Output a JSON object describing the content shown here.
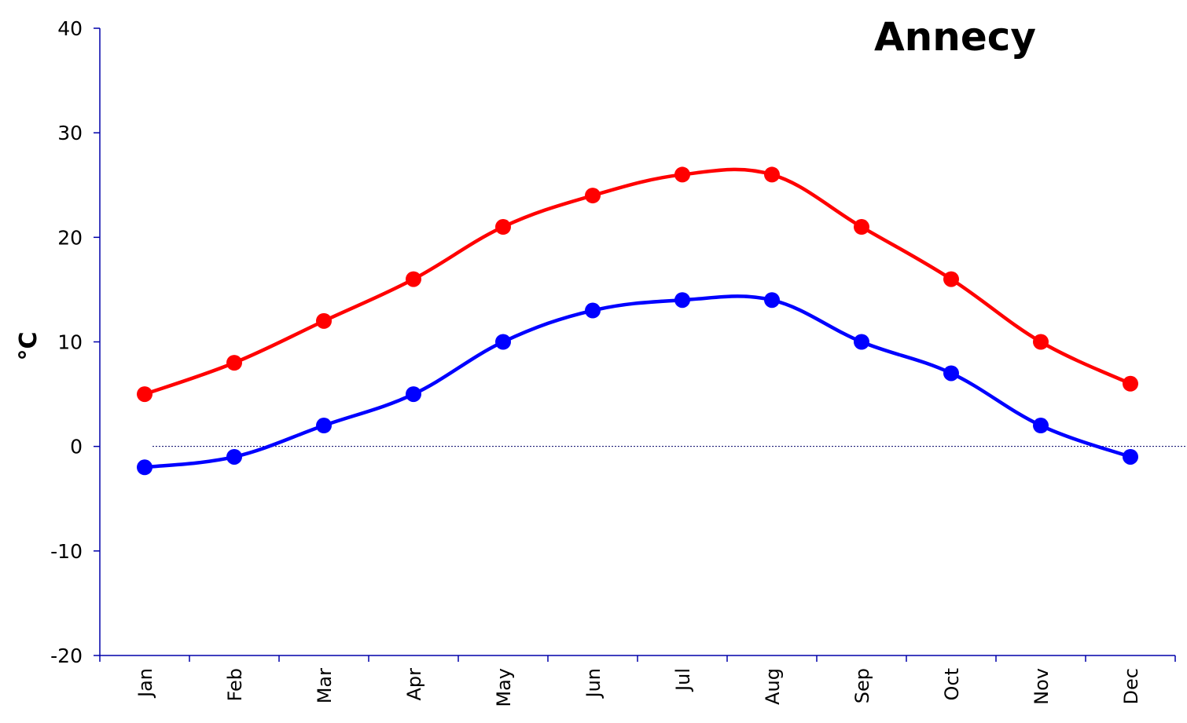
{
  "chart_data": {
    "type": "line",
    "title": "Annecy",
    "xlabel": "",
    "ylabel": "°C",
    "categories": [
      "Jan",
      "Feb",
      "Mar",
      "Apr",
      "May",
      "Jun",
      "Jul",
      "Aug",
      "Sep",
      "Oct",
      "Nov",
      "Dec"
    ],
    "ylim": [
      -20,
      40
    ],
    "yticks": [
      40,
      30,
      20,
      10,
      0,
      -10,
      -20
    ],
    "yticks_text": [
      "40",
      "30",
      "20",
      "10",
      "0",
      "-10",
      "-20"
    ],
    "zero_line": true,
    "grid": false,
    "legend": "none",
    "series": [
      {
        "color": "#ff0000",
        "values": [
          5,
          8,
          12,
          16,
          21,
          24,
          26,
          26,
          21,
          16,
          10,
          6
        ]
      },
      {
        "color": "#0000ff",
        "values": [
          -2,
          -1,
          2,
          5,
          10,
          13,
          14,
          14,
          10,
          7,
          2,
          -1
        ]
      }
    ],
    "axis_color": "#0000aa"
  }
}
